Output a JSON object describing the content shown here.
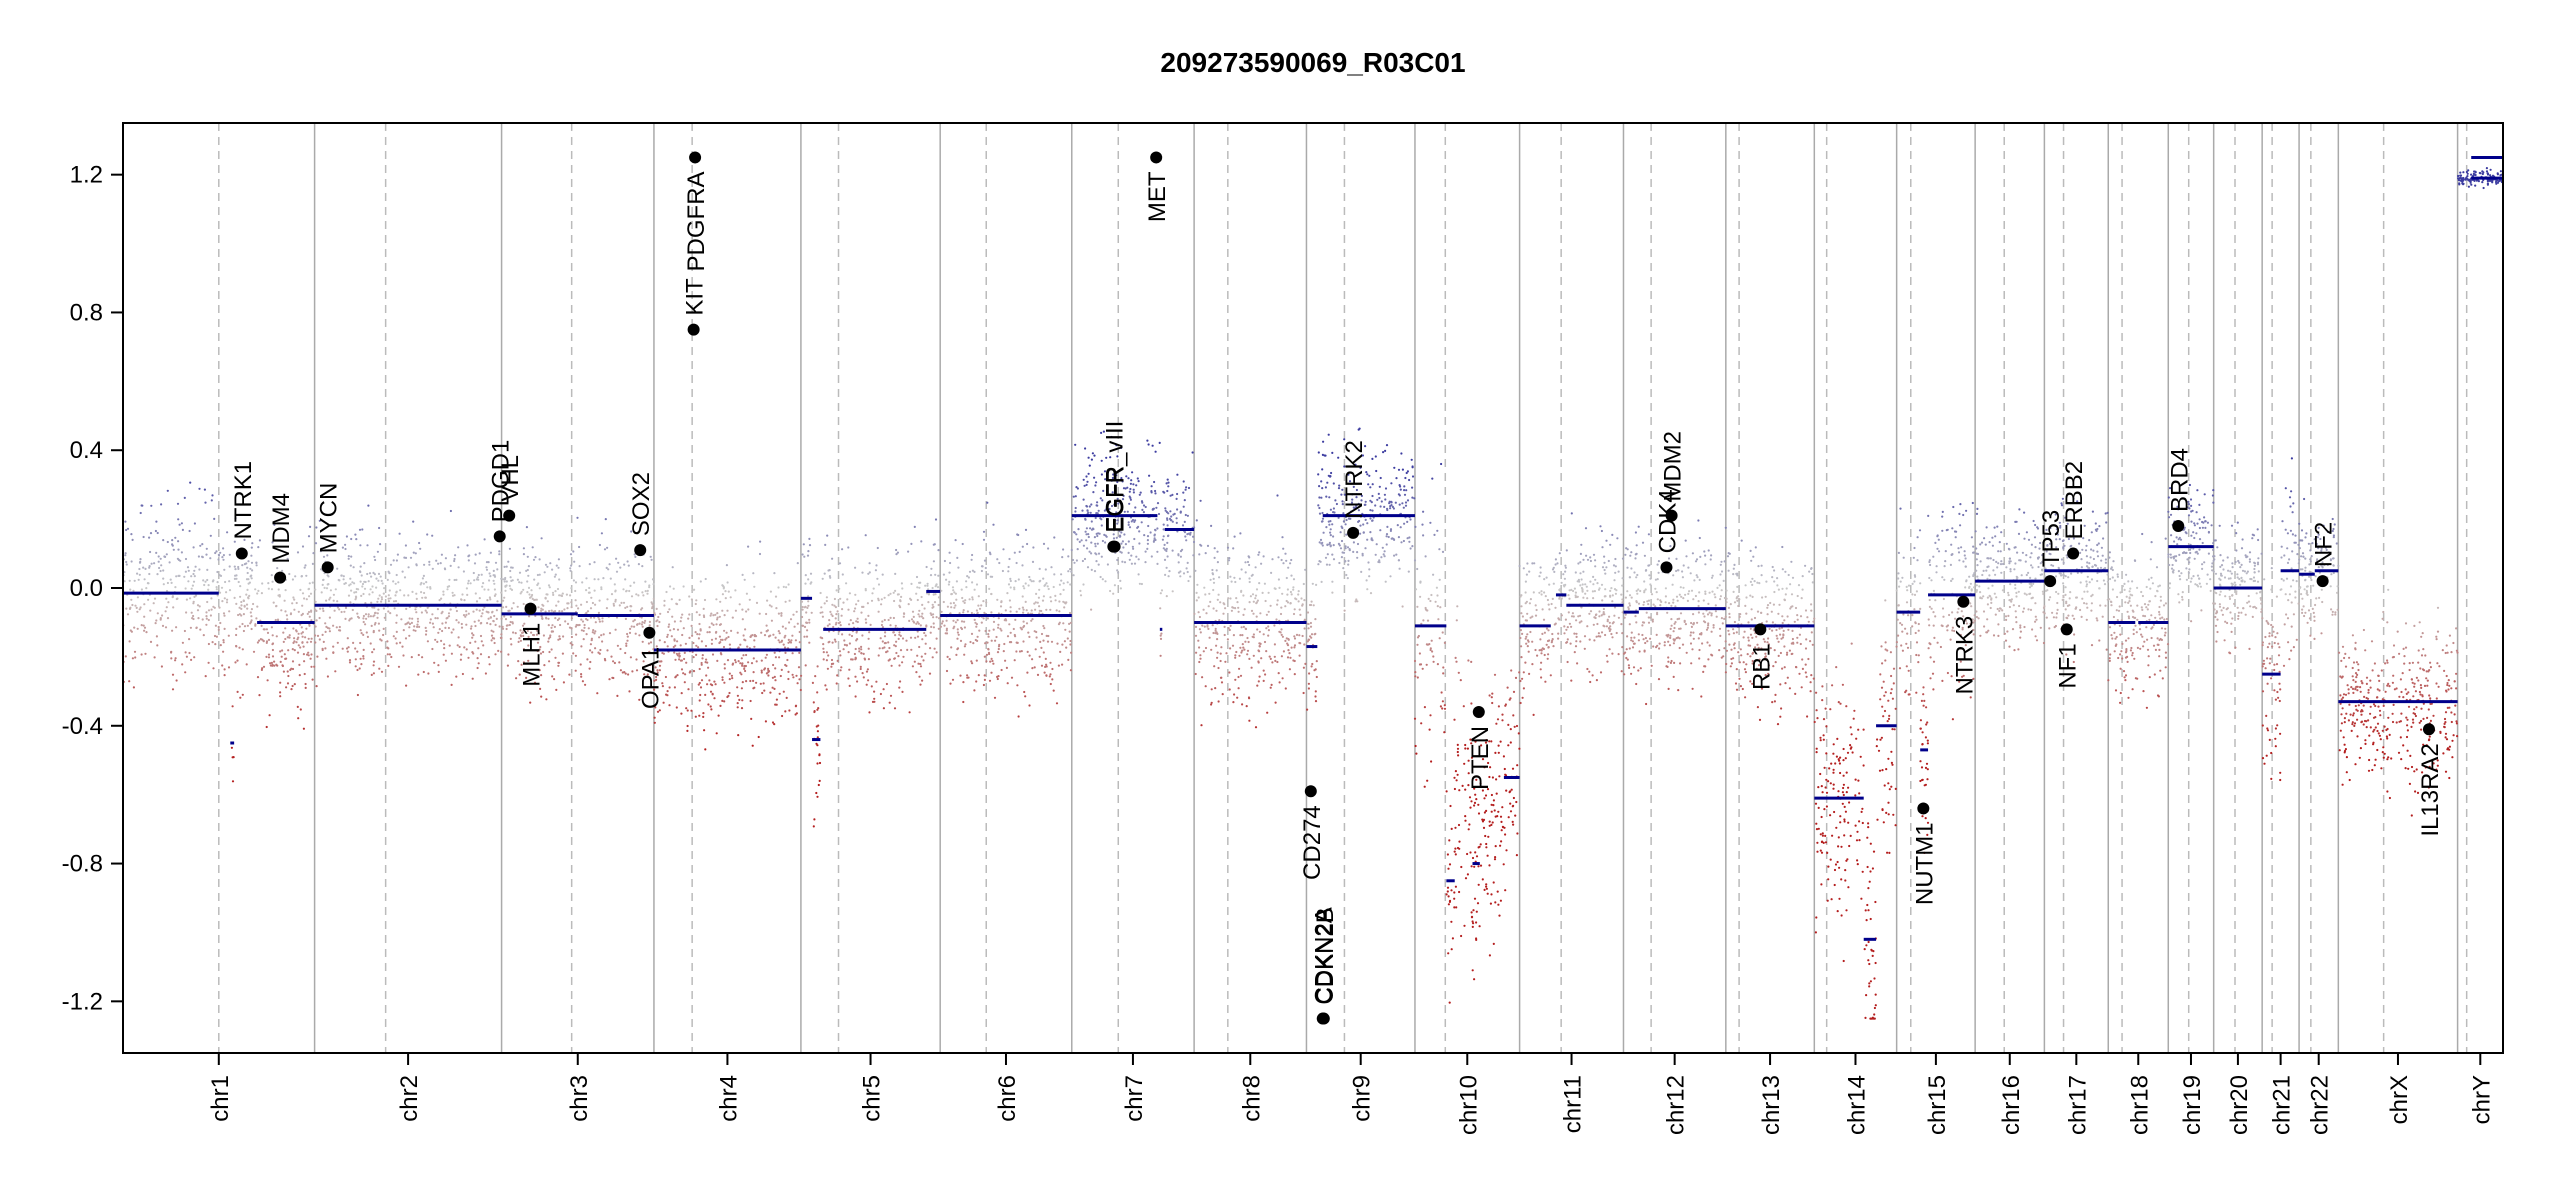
{
  "chart_data": {
    "type": "scatter",
    "title": "209273590069_R03C01",
    "xlabel": "",
    "ylabel": "",
    "ylim": [
      -1.35,
      1.35
    ],
    "yticks": [
      -1.2,
      -0.8,
      -0.4,
      0.0,
      0.4,
      0.8,
      1.2
    ],
    "ytick_labels": [
      "-1.2",
      "-0.8",
      "-0.4",
      "0.0",
      "0.4",
      "0.8",
      "1.2"
    ],
    "colors": {
      "gain": "#3c3ca0",
      "loss": "#b41e1e",
      "segment": "#00008b",
      "boundary": "#aaaaaa",
      "centromere": "#bbbbbb",
      "gene_point": "#000000"
    },
    "chromosomes": [
      {
        "name": "chr1",
        "length": 249,
        "centro": 0.5
      },
      {
        "name": "chr2",
        "length": 243,
        "centro": 0.38
      },
      {
        "name": "chr3",
        "length": 198,
        "centro": 0.46
      },
      {
        "name": "chr4",
        "length": 191,
        "centro": 0.26
      },
      {
        "name": "chr5",
        "length": 181,
        "centro": 0.27
      },
      {
        "name": "chr6",
        "length": 171,
        "centro": 0.35
      },
      {
        "name": "chr7",
        "length": 159,
        "centro": 0.38
      },
      {
        "name": "chr8",
        "length": 146,
        "centro": 0.3
      },
      {
        "name": "chr9",
        "length": 141,
        "centro": 0.35
      },
      {
        "name": "chr10",
        "length": 136,
        "centro": 0.29
      },
      {
        "name": "chr11",
        "length": 135,
        "centro": 0.4
      },
      {
        "name": "chr12",
        "length": 133,
        "centro": 0.27
      },
      {
        "name": "chr13",
        "length": 115,
        "centro": 0.15
      },
      {
        "name": "chr14",
        "length": 107,
        "centro": 0.15
      },
      {
        "name": "chr15",
        "length": 102,
        "centro": 0.18
      },
      {
        "name": "chr16",
        "length": 90,
        "centro": 0.42
      },
      {
        "name": "chr17",
        "length": 83,
        "centro": 0.3
      },
      {
        "name": "chr18",
        "length": 78,
        "centro": 0.23
      },
      {
        "name": "chr19",
        "length": 59,
        "centro": 0.45
      },
      {
        "name": "chr20",
        "length": 63,
        "centro": 0.44
      },
      {
        "name": "chr21",
        "length": 48,
        "centro": 0.27
      },
      {
        "name": "chr22",
        "length": 51,
        "centro": 0.3
      },
      {
        "name": "chrX",
        "length": 155,
        "centro": 0.38
      },
      {
        "name": "chrY",
        "length": 59,
        "centro": 0.2
      }
    ],
    "segments": [
      {
        "chr": "chr1",
        "start": 0.0,
        "end": 0.5,
        "value": -0.015
      },
      {
        "chr": "chr1",
        "start": 0.56,
        "end": 0.58,
        "value": -0.45
      },
      {
        "chr": "chr1",
        "start": 0.7,
        "end": 1.0,
        "value": -0.1
      },
      {
        "chr": "chr2",
        "start": 0.0,
        "end": 1.0,
        "value": -0.05
      },
      {
        "chr": "chr3",
        "start": 0.0,
        "end": 0.5,
        "value": -0.075
      },
      {
        "chr": "chr3",
        "start": 0.5,
        "end": 1.0,
        "value": -0.08
      },
      {
        "chr": "chr4",
        "start": 0.0,
        "end": 1.0,
        "value": -0.18
      },
      {
        "chr": "chr5",
        "start": 0.0,
        "end": 0.08,
        "value": -0.03
      },
      {
        "chr": "chr5",
        "start": 0.08,
        "end": 0.14,
        "value": -0.44
      },
      {
        "chr": "chr5",
        "start": 0.16,
        "end": 0.9,
        "value": -0.12
      },
      {
        "chr": "chr5",
        "start": 0.9,
        "end": 1.0,
        "value": -0.01
      },
      {
        "chr": "chr6",
        "start": 0.0,
        "end": 1.0,
        "value": -0.08
      },
      {
        "chr": "chr7",
        "start": 0.0,
        "end": 0.7,
        "value": 0.21
      },
      {
        "chr": "chr7",
        "start": 0.72,
        "end": 0.74,
        "value": -0.12
      },
      {
        "chr": "chr7",
        "start": 0.76,
        "end": 1.0,
        "value": 0.17
      },
      {
        "chr": "chr8",
        "start": 0.0,
        "end": 1.0,
        "value": -0.1
      },
      {
        "chr": "chr9",
        "start": 0.0,
        "end": 0.1,
        "value": -0.17
      },
      {
        "chr": "chr9",
        "start": 0.15,
        "end": 1.0,
        "value": 0.21
      },
      {
        "chr": "chr10",
        "start": 0.0,
        "end": 0.3,
        "value": -0.11
      },
      {
        "chr": "chr10",
        "start": 0.3,
        "end": 0.38,
        "value": -0.85
      },
      {
        "chr": "chr10",
        "start": 0.55,
        "end": 0.62,
        "value": -0.8
      },
      {
        "chr": "chr10",
        "start": 0.85,
        "end": 1.0,
        "value": -0.55
      },
      {
        "chr": "chr11",
        "start": 0.0,
        "end": 0.3,
        "value": -0.11
      },
      {
        "chr": "chr11",
        "start": 0.35,
        "end": 0.45,
        "value": -0.02
      },
      {
        "chr": "chr11",
        "start": 0.45,
        "end": 1.0,
        "value": -0.05
      },
      {
        "chr": "chr12",
        "start": 0.0,
        "end": 0.15,
        "value": -0.07
      },
      {
        "chr": "chr12",
        "start": 0.15,
        "end": 1.0,
        "value": -0.06
      },
      {
        "chr": "chr13",
        "start": 0.0,
        "end": 1.0,
        "value": -0.11
      },
      {
        "chr": "chr14",
        "start": 0.0,
        "end": 0.6,
        "value": -0.61
      },
      {
        "chr": "chr14",
        "start": 0.6,
        "end": 0.75,
        "value": -1.02
      },
      {
        "chr": "chr14",
        "start": 0.75,
        "end": 1.0,
        "value": -0.4
      },
      {
        "chr": "chr15",
        "start": 0.0,
        "end": 0.3,
        "value": -0.07
      },
      {
        "chr": "chr15",
        "start": 0.3,
        "end": 0.4,
        "value": -0.47
      },
      {
        "chr": "chr15",
        "start": 0.4,
        "end": 1.0,
        "value": -0.02
      },
      {
        "chr": "chr16",
        "start": 0.0,
        "end": 1.0,
        "value": 0.02
      },
      {
        "chr": "chr17",
        "start": 0.0,
        "end": 1.0,
        "value": 0.05
      },
      {
        "chr": "chr18",
        "start": 0.0,
        "end": 0.45,
        "value": -0.1
      },
      {
        "chr": "chr18",
        "start": 0.5,
        "end": 1.0,
        "value": -0.1
      },
      {
        "chr": "chr19",
        "start": 0.0,
        "end": 1.0,
        "value": 0.12
      },
      {
        "chr": "chr20",
        "start": 0.0,
        "end": 1.0,
        "value": 0.0
      },
      {
        "chr": "chr21",
        "start": 0.0,
        "end": 0.5,
        "value": -0.25
      },
      {
        "chr": "chr21",
        "start": 0.5,
        "end": 1.0,
        "value": 0.05
      },
      {
        "chr": "chr22",
        "start": 0.0,
        "end": 0.4,
        "value": 0.04
      },
      {
        "chr": "chr22",
        "start": 0.4,
        "end": 1.0,
        "value": 0.05
      },
      {
        "chr": "chrX",
        "start": 0.0,
        "end": 1.0,
        "value": -0.33
      },
      {
        "chr": "chrY",
        "start": 0.3,
        "end": 1.0,
        "value": 1.19
      },
      {
        "chr": "chrY",
        "start": 0.3,
        "end": 1.0,
        "value": 1.25
      }
    ],
    "profile": [
      {
        "chr": "chr1",
        "mean": -0.05,
        "spread": 0.22
      },
      {
        "chr": "chr2",
        "mean": -0.05,
        "spread": 0.18
      },
      {
        "chr": "chr3",
        "mean": -0.08,
        "spread": 0.18
      },
      {
        "chr": "chr4",
        "mean": -0.18,
        "spread": 0.2
      },
      {
        "chr": "chr5",
        "mean": -0.12,
        "spread": 0.2
      },
      {
        "chr": "chr6",
        "mean": -0.08,
        "spread": 0.2
      },
      {
        "chr": "chr7",
        "mean": 0.2,
        "spread": 0.18
      },
      {
        "chr": "chr8",
        "mean": -0.1,
        "spread": 0.22
      },
      {
        "chr": "chr9",
        "mean": 0.18,
        "spread": 0.2
      },
      {
        "chr": "chr10",
        "mean": -0.6,
        "spread": 0.35
      },
      {
        "chr": "chr11",
        "mean": -0.06,
        "spread": 0.18
      },
      {
        "chr": "chr12",
        "mean": -0.06,
        "spread": 0.2
      },
      {
        "chr": "chr13",
        "mean": -0.11,
        "spread": 0.2
      },
      {
        "chr": "chr14",
        "mean": -0.62,
        "spread": 0.3
      },
      {
        "chr": "chr15",
        "mean": -0.1,
        "spread": 0.25
      },
      {
        "chr": "chr16",
        "mean": 0.02,
        "spread": 0.18
      },
      {
        "chr": "chr17",
        "mean": 0.05,
        "spread": 0.18
      },
      {
        "chr": "chr18",
        "mean": -0.1,
        "spread": 0.2
      },
      {
        "chr": "chr19",
        "mean": 0.12,
        "spread": 0.15
      },
      {
        "chr": "chr20",
        "mean": 0.0,
        "spread": 0.15
      },
      {
        "chr": "chr21",
        "mean": -0.15,
        "spread": 0.25
      },
      {
        "chr": "chr22",
        "mean": 0.04,
        "spread": 0.15
      },
      {
        "chr": "chrX",
        "mean": -0.33,
        "spread": 0.22
      },
      {
        "chr": "chrY",
        "mean": 1.2,
        "spread": 0.02
      }
    ],
    "genes": [
      {
        "name": "NTRK1",
        "chr": "chr1",
        "pos": 0.62,
        "value": 0.1,
        "label_side": "above"
      },
      {
        "name": "MDM4",
        "chr": "chr1",
        "pos": 0.82,
        "value": 0.03,
        "label_side": "above"
      },
      {
        "name": "MYCN",
        "chr": "chr2",
        "pos": 0.07,
        "value": 0.06,
        "label_side": "above"
      },
      {
        "name": "PDGD1",
        "chr": "chr2",
        "pos": 0.99,
        "value": 0.15,
        "label_side": "above"
      },
      {
        "name": "VHL",
        "chr": "chr3",
        "pos": 0.05,
        "value": 0.21,
        "label_side": "above"
      },
      {
        "name": "MLH1",
        "chr": "chr3",
        "pos": 0.19,
        "value": -0.06,
        "label_side": "below"
      },
      {
        "name": "SOX2",
        "chr": "chr3",
        "pos": 0.91,
        "value": 0.11,
        "label_side": "above"
      },
      {
        "name": "OPA1",
        "chr": "chr3",
        "pos": 0.97,
        "value": -0.13,
        "label_side": "below"
      },
      {
        "name": "KIT",
        "chr": "chr4",
        "pos": 0.27,
        "value": 0.75,
        "label_side": "above"
      },
      {
        "name": "PDGFRA",
        "chr": "chr4",
        "pos": 0.28,
        "value": 1.25,
        "label_side": "below"
      },
      {
        "name": "EGFR_vIII",
        "chr": "chr7",
        "pos": 0.34,
        "value": 0.12,
        "label_side": "above"
      },
      {
        "name": "EGFR",
        "chr": "chr7",
        "pos": 0.35,
        "value": 0.12,
        "label_side": "above"
      },
      {
        "name": "MET",
        "chr": "chr7",
        "pos": 0.69,
        "value": 1.25,
        "label_side": "below"
      },
      {
        "name": "CD274",
        "chr": "chr9",
        "pos": 0.04,
        "value": -0.59,
        "label_side": "below"
      },
      {
        "name": "CDKN2A",
        "chr": "chr9",
        "pos": 0.15,
        "value": -1.25,
        "label_side": "above"
      },
      {
        "name": "CDKN2B",
        "chr": "chr9",
        "pos": 0.16,
        "value": -1.25,
        "label_side": "above"
      },
      {
        "name": "NTRK2",
        "chr": "chr9",
        "pos": 0.43,
        "value": 0.16,
        "label_side": "above"
      },
      {
        "name": "PTEN",
        "chr": "chr10",
        "pos": 0.61,
        "value": -0.36,
        "label_side": "below"
      },
      {
        "name": "CDK4",
        "chr": "chr12",
        "pos": 0.42,
        "value": 0.06,
        "label_side": "above"
      },
      {
        "name": "MDM2",
        "chr": "chr12",
        "pos": 0.47,
        "value": 0.21,
        "label_side": "above"
      },
      {
        "name": "RB1",
        "chr": "chr13",
        "pos": 0.39,
        "value": -0.12,
        "label_side": "below"
      },
      {
        "name": "NUTM1",
        "chr": "chr15",
        "pos": 0.34,
        "value": -0.64,
        "label_side": "below"
      },
      {
        "name": "NTRK3",
        "chr": "chr15",
        "pos": 0.85,
        "value": -0.04,
        "label_side": "below"
      },
      {
        "name": "TP53",
        "chr": "chr17",
        "pos": 0.09,
        "value": 0.02,
        "label_side": "above"
      },
      {
        "name": "ERBB2",
        "chr": "chr17",
        "pos": 0.45,
        "value": 0.1,
        "label_side": "above"
      },
      {
        "name": "NF1",
        "chr": "chr17",
        "pos": 0.35,
        "value": -0.12,
        "label_side": "below"
      },
      {
        "name": "BRD4",
        "chr": "chr19",
        "pos": 0.22,
        "value": 0.18,
        "label_side": "above"
      },
      {
        "name": "NF2",
        "chr": "chr22",
        "pos": 0.6,
        "value": 0.02,
        "label_side": "above"
      },
      {
        "name": "IL13RA2",
        "chr": "chrX",
        "pos": 0.76,
        "value": -0.41,
        "label_side": "below"
      }
    ]
  }
}
